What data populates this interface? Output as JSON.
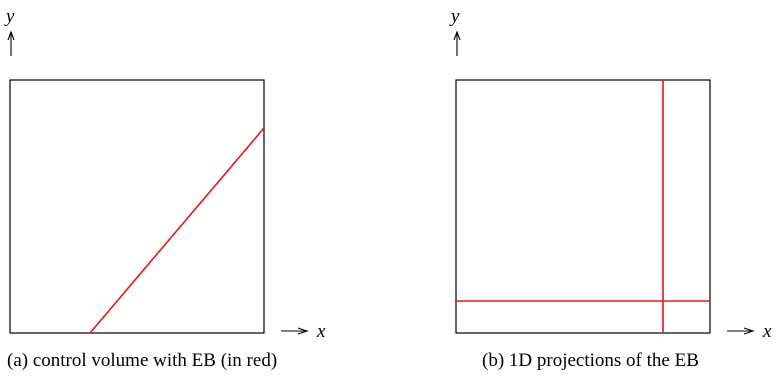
{
  "panels": {
    "a": {
      "caption": "(a) control volume with EB (in red)",
      "y_axis_label": "y",
      "x_axis_label": "x"
    },
    "b": {
      "caption": "(b) 1D projections of the EB",
      "y_axis_label": "y",
      "x_axis_label": "x"
    }
  },
  "colors": {
    "eb": "#e8141c",
    "frame": "#000000"
  }
}
